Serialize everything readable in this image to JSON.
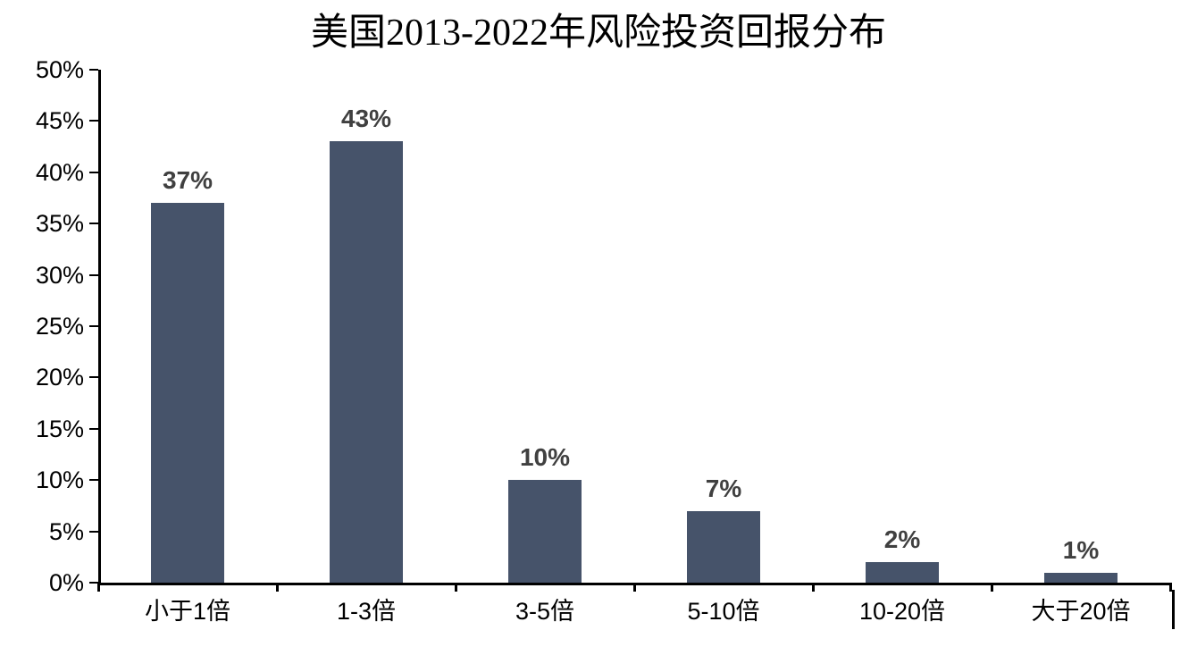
{
  "chart_data": {
    "type": "bar",
    "title": "美国2013-2022年风险投资回报分布",
    "categories": [
      "小于1倍",
      "1-3倍",
      "3-5倍",
      "5-10倍",
      "10-20倍",
      "大于20倍"
    ],
    "values": [
      37,
      43,
      10,
      7,
      2,
      1
    ],
    "data_labels": [
      "37%",
      "43%",
      "10%",
      "7%",
      "2%",
      "1%"
    ],
    "xlabel": "",
    "ylabel": "",
    "ylim": [
      0,
      50
    ],
    "y_tick_step": 5,
    "y_tick_labels": [
      "0%",
      "5%",
      "10%",
      "15%",
      "20%",
      "25%",
      "30%",
      "35%",
      "40%",
      "45%",
      "50%"
    ],
    "grid": false,
    "legend": "none",
    "colors": {
      "bar": "#46536A",
      "data_label": "#404040",
      "axis": "#000000",
      "title": "#000000",
      "background": "#ffffff"
    }
  }
}
